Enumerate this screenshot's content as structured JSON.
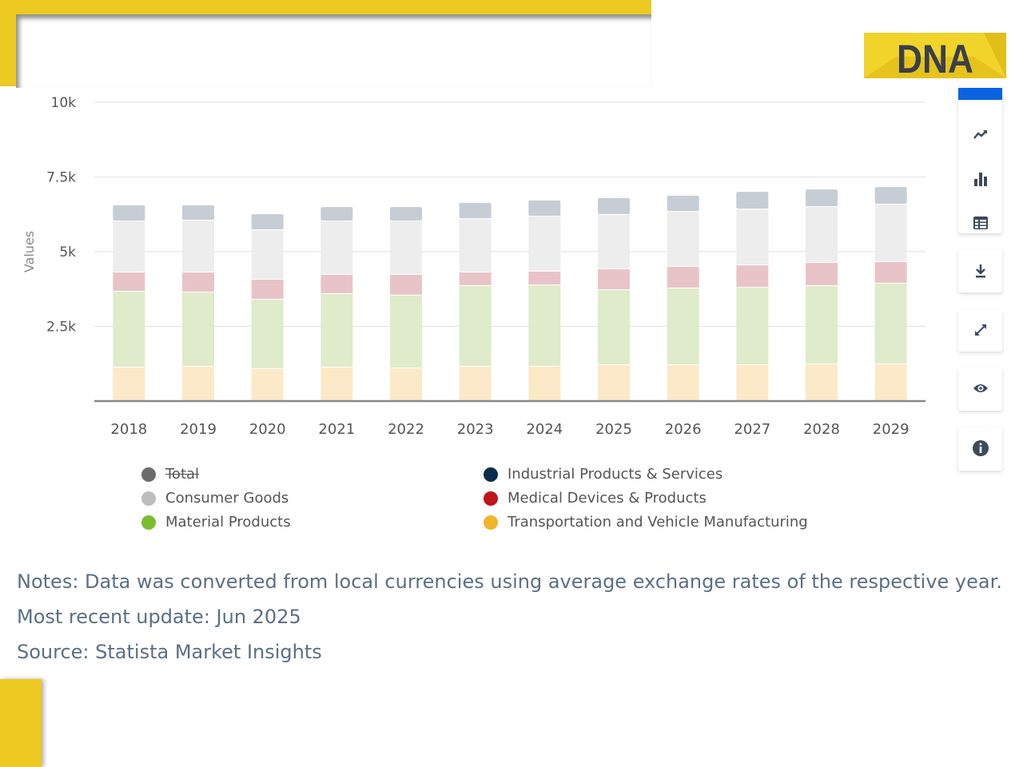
{
  "brand": {
    "logo_text": "DNA",
    "frame_color": "#ecc920"
  },
  "toolbar": {
    "items": [
      {
        "icon": "trend-line-icon"
      },
      {
        "icon": "bar-chart-icon"
      },
      {
        "icon": "table-icon"
      },
      {
        "icon": "download-icon"
      },
      {
        "icon": "expand-icon"
      },
      {
        "icon": "eye-icon"
      },
      {
        "icon": "info-icon"
      }
    ],
    "accent": "#0a63e0"
  },
  "chart_data": {
    "type": "bar",
    "stacked": true,
    "ylabel": "Values",
    "ylim": [
      0,
      10000
    ],
    "yticks": [
      "2.5k",
      "5k",
      "7.5k",
      "10k"
    ],
    "ytick_values": [
      2500,
      5000,
      7500,
      10000
    ],
    "grid": true,
    "legend_position": "bottom",
    "categories": [
      "2018",
      "2019",
      "2020",
      "2021",
      "2022",
      "2023",
      "2024",
      "2025",
      "2026",
      "2027",
      "2028",
      "2029"
    ],
    "series": [
      {
        "name": "Transportation and Vehicle Manufacturing",
        "color": "#f1b52a",
        "fill": "#fbe9c8",
        "values": [
          1150,
          1180,
          1100,
          1150,
          1120,
          1180,
          1180,
          1230,
          1230,
          1230,
          1260,
          1260
        ]
      },
      {
        "name": "Material Products",
        "color": "#7cbd2f",
        "fill": "#dfebca",
        "values": [
          2540,
          2480,
          2320,
          2460,
          2440,
          2700,
          2720,
          2510,
          2570,
          2590,
          2620,
          2700
        ]
      },
      {
        "name": "Medical Devices & Products",
        "color": "#c0131c",
        "fill": "#e8c4c8",
        "values": [
          640,
          670,
          670,
          640,
          690,
          450,
          460,
          700,
          720,
          750,
          770,
          720
        ]
      },
      {
        "name": "Consumer Goods",
        "color": "#bdbdbd",
        "fill": "#ededee",
        "values": [
          1710,
          1740,
          1660,
          1790,
          1790,
          1790,
          1840,
          1820,
          1840,
          1870,
          1870,
          1920
        ]
      },
      {
        "name": "Industrial Products & Services",
        "color": "#0d2b4a",
        "fill": "#c6cdd5",
        "values": [
          540,
          510,
          530,
          480,
          480,
          540,
          540,
          560,
          540,
          590,
          590,
          590
        ]
      }
    ],
    "legend": [
      {
        "name": "Total",
        "color": "#6b6b6b",
        "hidden": true
      },
      {
        "name": "Consumer Goods",
        "color": "#bdbdbd"
      },
      {
        "name": "Material Products",
        "color": "#7cbd2f"
      },
      {
        "name": "Industrial Products & Services",
        "color": "#0d2b4a"
      },
      {
        "name": "Medical Devices & Products",
        "color": "#c0131c"
      },
      {
        "name": "Transportation and Vehicle Manufacturing",
        "color": "#f1b52a"
      }
    ]
  },
  "notes": {
    "notes": "Notes: Data was converted from local currencies using average exchange rates of the respective year.",
    "update": "Most recent update: Jun 2025",
    "source": "Source: Statista Market Insights"
  }
}
